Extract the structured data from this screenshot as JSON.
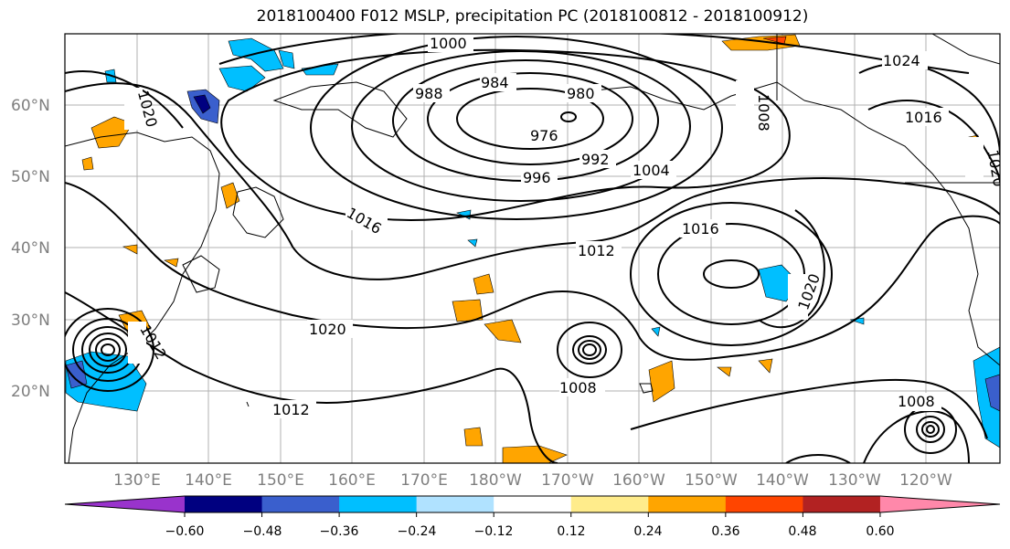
{
  "title": "2018100400 F012 MSLP, precipitation PC (2018100812 - 2018100912)",
  "lat_labels": [
    "60°N",
    "50°N",
    "40°N",
    "30°N",
    "20°N"
  ],
  "lon_labels": [
    "130°E",
    "140°E",
    "150°E",
    "160°E",
    "170°E",
    "180°W",
    "170°W",
    "160°W",
    "150°W",
    "140°W",
    "130°W",
    "120°W"
  ],
  "contour_labels": [
    "1000",
    "984",
    "988",
    "980",
    "976",
    "992",
    "996",
    "1004",
    "1008",
    "1024",
    "1016",
    "1020",
    "1012",
    "1016",
    "1012",
    "1020",
    "1020",
    "1008",
    "1012",
    "1008",
    "1016",
    "1020"
  ],
  "colorbar": {
    "ticks": [
      "−0.60",
      "−0.48",
      "−0.36",
      "−0.24",
      "−0.12",
      "0.12",
      "0.24",
      "0.36",
      "0.48",
      "0.60"
    ],
    "colors": [
      "#9933cc",
      "#000080",
      "#3a5fcd",
      "#00bfff",
      "#b0e2ff",
      "#ffffff",
      "#ffec8b",
      "#ffa500",
      "#ff4500",
      "#b22222",
      "#ff88aa"
    ]
  },
  "precip_colors": {
    "blue": "#00bfff",
    "lightblue": "#b0e2ff",
    "darkblue": "#3a5fcd",
    "navy": "#000080",
    "orange": "#ffa500",
    "yellow": "#ffec8b",
    "red": "#ff4500"
  }
}
